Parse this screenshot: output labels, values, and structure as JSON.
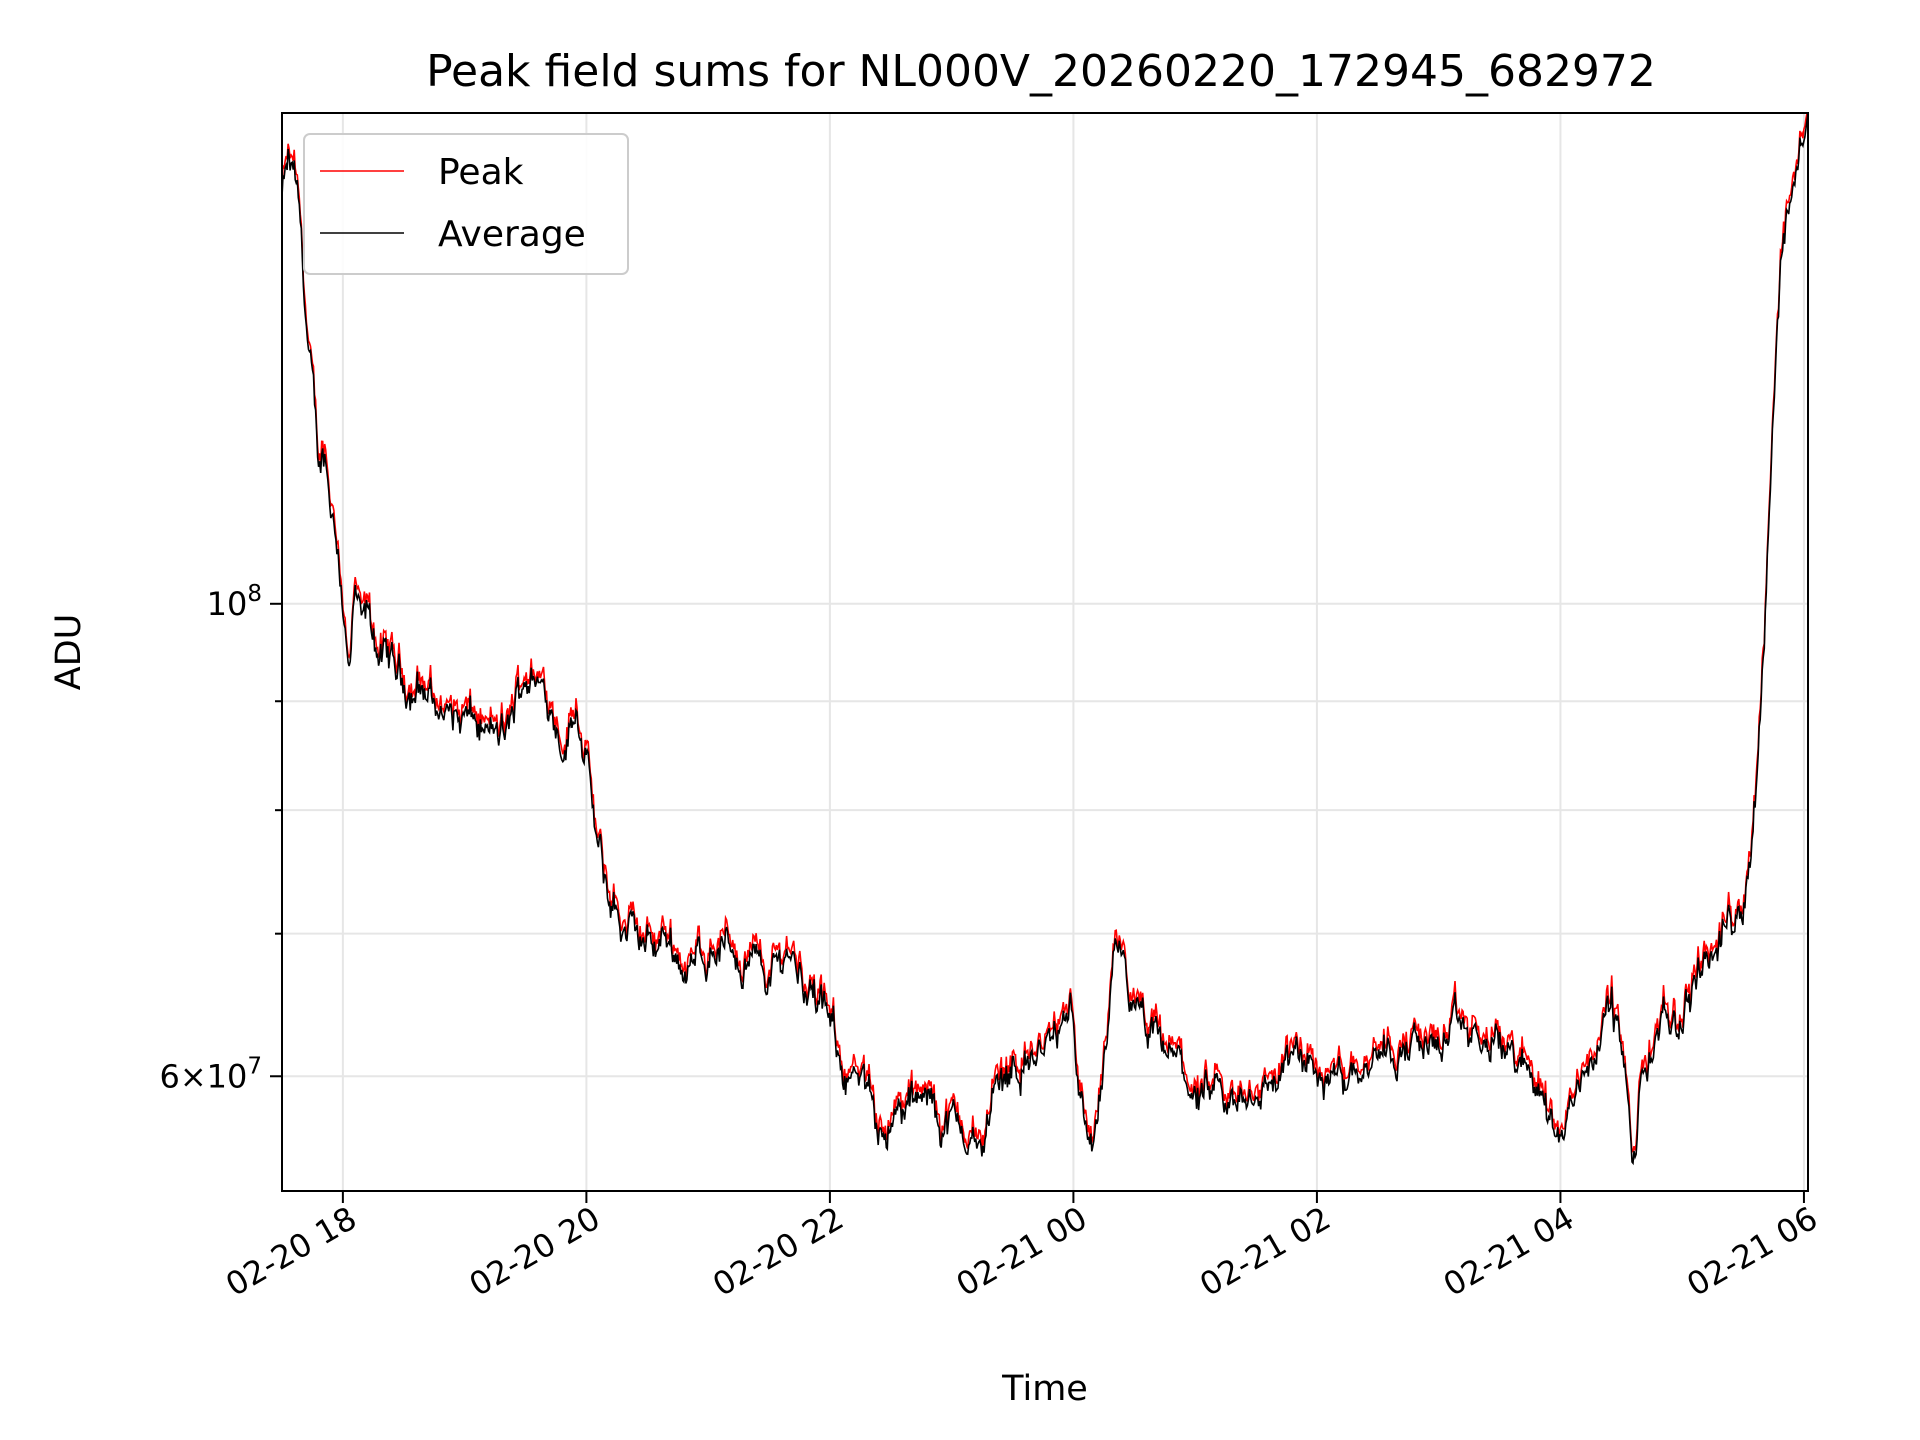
{
  "chart_data": {
    "type": "line",
    "title": "Peak field sums for NL000V_20260220_172945_682972",
    "xlabel": "Time",
    "ylabel": "ADU",
    "yscale": "log",
    "grid": true,
    "legend_position": "top-left",
    "x_range": [
      "02-20 17:30",
      "02-21 06:02"
    ],
    "ylim": [
      53000000,
      170000000
    ],
    "x_ticks": [
      "02-20 18",
      "02-20 20",
      "02-20 22",
      "02-21 00",
      "02-21 02",
      "02-21 04",
      "02-21 06"
    ],
    "y_ticks": [
      {
        "value": 100000000,
        "base": "10",
        "exp": "8",
        "mantissa": ""
      },
      {
        "value": 60000000,
        "base": "10",
        "exp": "7",
        "mantissa": "6×"
      }
    ],
    "series": [
      {
        "name": "Peak",
        "color": "#ff0000"
      },
      {
        "name": "Average",
        "color": "#000000"
      }
    ],
    "points": [
      [
        "02-20 17:30",
        155000000
      ],
      [
        "02-20 17:33",
        160000000
      ],
      [
        "02-20 17:36",
        158000000
      ],
      [
        "02-20 17:39",
        150000000
      ],
      [
        "02-20 17:42",
        135000000
      ],
      [
        "02-20 17:45",
        125000000
      ],
      [
        "02-20 17:48",
        116000000
      ],
      [
        "02-20 17:51",
        118000000
      ],
      [
        "02-20 17:54",
        112000000
      ],
      [
        "02-20 17:57",
        108000000
      ],
      [
        "02-20 18:00",
        101000000
      ],
      [
        "02-20 18:03",
        92000000
      ],
      [
        "02-20 18:06",
        100000000
      ],
      [
        "02-20 18:09",
        97000000
      ],
      [
        "02-20 18:12",
        98000000
      ],
      [
        "02-20 18:20",
        94000000
      ],
      [
        "02-20 18:30",
        92000000
      ],
      [
        "02-20 18:40",
        91000000
      ],
      [
        "02-20 18:50",
        89000000
      ],
      [
        "02-20 19:00",
        88000000
      ],
      [
        "02-20 19:10",
        87000000
      ],
      [
        "02-20 19:20",
        86000000
      ],
      [
        "02-20 19:30",
        93000000
      ],
      [
        "02-20 19:40",
        91000000
      ],
      [
        "02-20 19:50",
        86000000
      ],
      [
        "02-20 19:55",
        90000000
      ],
      [
        "02-20 20:00",
        85000000
      ],
      [
        "02-20 20:05",
        77000000
      ],
      [
        "02-20 20:10",
        73000000
      ],
      [
        "02-20 20:20",
        70000000
      ],
      [
        "02-20 20:30",
        69000000
      ],
      [
        "02-20 20:40",
        70000000
      ],
      [
        "02-20 20:50",
        67000000
      ],
      [
        "02-20 21:00",
        69000000
      ],
      [
        "02-20 21:10",
        69000000
      ],
      [
        "02-20 21:20",
        68000000
      ],
      [
        "02-20 21:30",
        67000000
      ],
      [
        "02-20 21:40",
        69000000
      ],
      [
        "02-20 21:50",
        66000000
      ],
      [
        "02-20 22:00",
        63000000
      ],
      [
        "02-20 22:10",
        60000000
      ],
      [
        "02-20 22:20",
        58000000
      ],
      [
        "02-20 22:30",
        57000000
      ],
      [
        "02-20 22:40",
        58000000
      ],
      [
        "02-20 22:50",
        58000000
      ],
      [
        "02-20 23:00",
        57000000
      ],
      [
        "02-20 23:10",
        56000000
      ],
      [
        "02-20 23:15",
        55000000
      ],
      [
        "02-20 23:20",
        59000000
      ],
      [
        "02-20 23:30",
        61000000
      ],
      [
        "02-20 23:40",
        61000000
      ],
      [
        "02-20 23:50",
        62000000
      ],
      [
        "02-21 00:00",
        64000000
      ],
      [
        "02-21 00:05",
        58000000
      ],
      [
        "02-21 00:10",
        55000000
      ],
      [
        "02-21 00:15",
        60000000
      ],
      [
        "02-21 00:20",
        67000000
      ],
      [
        "02-21 00:25",
        68000000
      ],
      [
        "02-21 00:30",
        64000000
      ],
      [
        "02-21 00:40",
        62000000
      ],
      [
        "02-21 00:50",
        61000000
      ],
      [
        "02-21 01:00",
        59000000
      ],
      [
        "02-21 01:10",
        58000000
      ],
      [
        "02-21 01:20",
        58000000
      ],
      [
        "02-21 01:30",
        59000000
      ],
      [
        "02-21 01:40",
        60000000
      ],
      [
        "02-21 01:50",
        61000000
      ],
      [
        "02-21 02:00",
        60000000
      ],
      [
        "02-21 02:10",
        60000000
      ],
      [
        "02-21 02:20",
        61000000
      ],
      [
        "02-21 02:30",
        62000000
      ],
      [
        "02-21 02:40",
        62000000
      ],
      [
        "02-21 02:50",
        62000000
      ],
      [
        "02-21 03:00",
        62000000
      ],
      [
        "02-21 03:10",
        63000000
      ],
      [
        "02-21 03:20",
        62000000
      ],
      [
        "02-21 03:30",
        62000000
      ],
      [
        "02-21 03:40",
        61000000
      ],
      [
        "02-21 03:50",
        59000000
      ],
      [
        "02-21 04:00",
        56000000
      ],
      [
        "02-21 04:10",
        60000000
      ],
      [
        "02-21 04:20",
        63000000
      ],
      [
        "02-21 04:25",
        65000000
      ],
      [
        "02-21 04:30",
        62000000
      ],
      [
        "02-21 04:36",
        54000000
      ],
      [
        "02-21 04:40",
        60000000
      ],
      [
        "02-21 04:50",
        63000000
      ],
      [
        "02-21 05:00",
        64000000
      ],
      [
        "02-21 05:10",
        68000000
      ],
      [
        "02-21 05:20",
        70000000
      ],
      [
        "02-21 05:30",
        73000000
      ],
      [
        "02-21 05:35",
        78000000
      ],
      [
        "02-21 05:40",
        95000000
      ],
      [
        "02-21 05:45",
        125000000
      ],
      [
        "02-21 05:50",
        150000000
      ],
      [
        "02-21 05:55",
        160000000
      ],
      [
        "02-21 06:02",
        168000000
      ]
    ]
  }
}
